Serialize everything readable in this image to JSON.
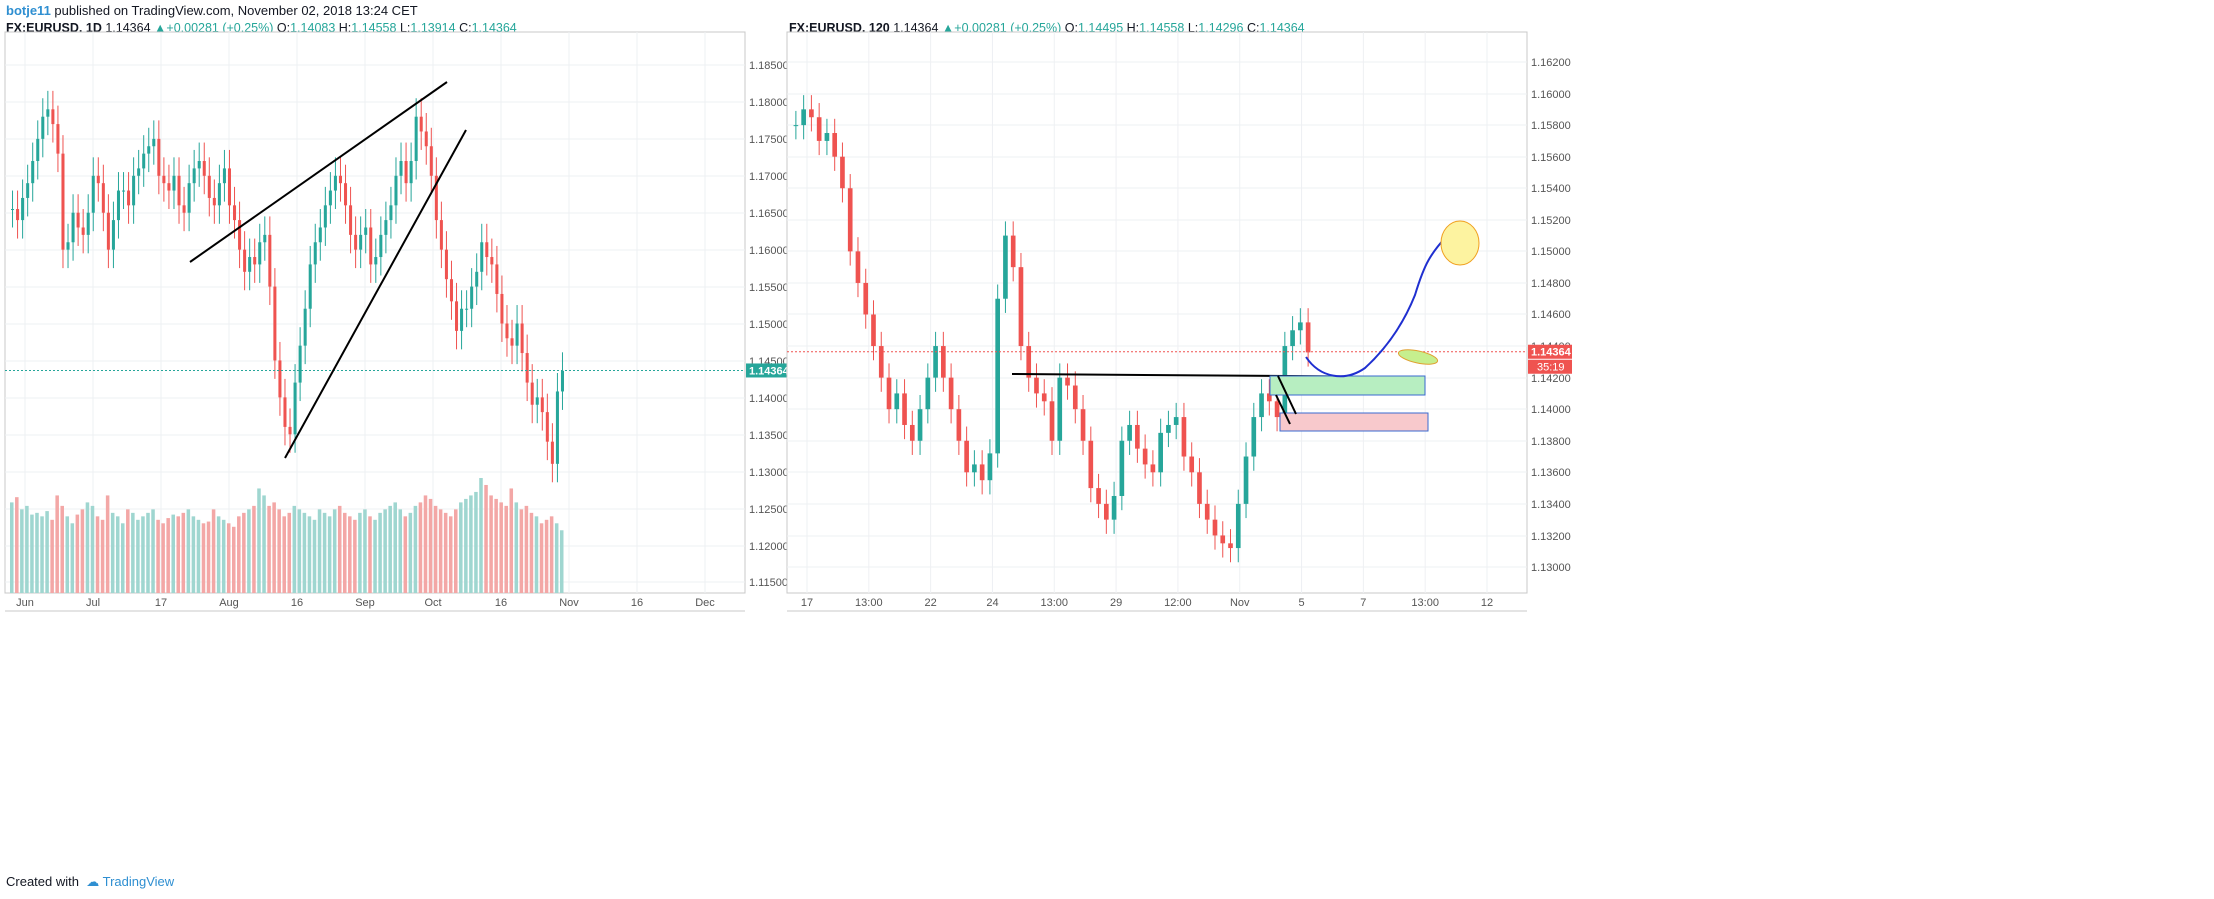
{
  "header": {
    "publisher": "botje11",
    "published_text": "published on TradingView.com, November 02, 2018 13:24 CET"
  },
  "footer": {
    "created_with": "Created with",
    "brand": "TradingView"
  },
  "colors": {
    "up": "#26a69a",
    "down": "#ef5350",
    "grid": "#eef0f3",
    "axis_text": "#555555",
    "price_label": "#ef5350"
  },
  "chart_data": [
    {
      "type": "candlestick",
      "symbol": "FX:EURUSD",
      "interval": "1D",
      "last": "1.14364",
      "change": "+0.00281 (+0.25%)",
      "open": "1.14083",
      "high": "1.14558",
      "low": "1.13914",
      "close": "1.14364",
      "labels": {
        "o": "O:",
        "h": "H:",
        "l": "L:",
        "c": "C:"
      },
      "ylim": [
        1.1135,
        1.1885
      ],
      "y_ticks": [
        "1.18500",
        "1.18000",
        "1.17500",
        "1.17000",
        "1.16500",
        "1.16000",
        "1.15500",
        "1.15000",
        "1.14500",
        "1.14000",
        "1.13500",
        "1.13000",
        "1.12500",
        "1.12000",
        "1.11500"
      ],
      "x_ticks": [
        "Jun",
        "Jul",
        "17",
        "Aug",
        "16",
        "Sep",
        "Oct",
        "16",
        "Nov",
        "16",
        "Dec"
      ],
      "price_tag": "1.14364",
      "close_series": [
        1.1655,
        1.164,
        1.167,
        1.169,
        1.172,
        1.175,
        1.178,
        1.179,
        1.177,
        1.173,
        1.16,
        1.161,
        1.165,
        1.163,
        1.162,
        1.165,
        1.17,
        1.169,
        1.165,
        1.16,
        1.164,
        1.168,
        1.168,
        1.166,
        1.17,
        1.171,
        1.173,
        1.174,
        1.175,
        1.17,
        1.169,
        1.168,
        1.17,
        1.166,
        1.165,
        1.169,
        1.171,
        1.172,
        1.17,
        1.167,
        1.166,
        1.169,
        1.171,
        1.166,
        1.164,
        1.16,
        1.157,
        1.159,
        1.158,
        1.161,
        1.162,
        1.155,
        1.145,
        1.14,
        1.136,
        1.135,
        1.142,
        1.147,
        1.152,
        1.158,
        1.161,
        1.163,
        1.166,
        1.168,
        1.17,
        1.169,
        1.166,
        1.162,
        1.16,
        1.162,
        1.163,
        1.158,
        1.159,
        1.162,
        1.164,
        1.166,
        1.17,
        1.172,
        1.169,
        1.172,
        1.178,
        1.176,
        1.174,
        1.17,
        1.164,
        1.16,
        1.156,
        1.153,
        1.149,
        1.152,
        1.152,
        1.155,
        1.157,
        1.161,
        1.159,
        1.158,
        1.154,
        1.15,
        1.148,
        1.147,
        1.15,
        1.146,
        1.142,
        1.139,
        1.14,
        1.138,
        1.134,
        1.131,
        1.1408,
        1.1436
      ],
      "volume_series": [
        52,
        55,
        48,
        50,
        45,
        46,
        44,
        47,
        42,
        56,
        50,
        44,
        40,
        45,
        48,
        52,
        50,
        44,
        42,
        56,
        46,
        44,
        40,
        48,
        46,
        42,
        44,
        46,
        48,
        42,
        40,
        43,
        45,
        44,
        46,
        48,
        44,
        42,
        40,
        41,
        48,
        44,
        42,
        40,
        38,
        44,
        46,
        48,
        50,
        60,
        56,
        50,
        52,
        48,
        44,
        46,
        50,
        48,
        46,
        44,
        42,
        48,
        46,
        44,
        48,
        50,
        46,
        44,
        42,
        46,
        48,
        44,
        42,
        46,
        48,
        50,
        52,
        48,
        44,
        46,
        50,
        52,
        56,
        54,
        50,
        48,
        46,
        44,
        48,
        52,
        54,
        56,
        58,
        66,
        62,
        56,
        54,
        52,
        50,
        60,
        52,
        48,
        50,
        46,
        44,
        40,
        42,
        44,
        40,
        36
      ]
    },
    {
      "type": "candlestick",
      "symbol": "FX:EURUSD",
      "interval": "120",
      "last": "1.14364",
      "change": "+0.00281 (+0.25%)",
      "open": "1.14495",
      "high": "1.14558",
      "low": "1.14296",
      "close": "1.14364",
      "labels": {
        "o": "O:",
        "h": "H:",
        "l": "L:",
        "c": "C:"
      },
      "ylim": [
        1.1288,
        1.1632
      ],
      "y_ticks": [
        "1.16200",
        "1.16000",
        "1.15800",
        "1.15600",
        "1.15400",
        "1.15200",
        "1.15000",
        "1.14800",
        "1.14600",
        "1.14400",
        "1.14200",
        "1.14000",
        "1.13800",
        "1.13600",
        "1.13400",
        "1.13200",
        "1.13000"
      ],
      "x_ticks": [
        "17",
        "13:00",
        "22",
        "24",
        "13:00",
        "29",
        "12:00",
        "Nov",
        "5",
        "7",
        "13:00",
        "12"
      ],
      "price_tag": "1.14364",
      "countdown": "35:19",
      "close_series": [
        1.158,
        1.159,
        1.1585,
        1.157,
        1.1575,
        1.156,
        1.154,
        1.15,
        1.148,
        1.146,
        1.144,
        1.142,
        1.14,
        1.141,
        1.139,
        1.138,
        1.14,
        1.142,
        1.144,
        1.142,
        1.14,
        1.138,
        1.136,
        1.1365,
        1.1355,
        1.1372,
        1.147,
        1.151,
        1.149,
        1.144,
        1.142,
        1.141,
        1.1405,
        1.138,
        1.142,
        1.1415,
        1.14,
        1.138,
        1.135,
        1.134,
        1.133,
        1.1345,
        1.138,
        1.139,
        1.1375,
        1.1365,
        1.136,
        1.1385,
        1.139,
        1.1395,
        1.137,
        1.136,
        1.134,
        1.133,
        1.132,
        1.1315,
        1.1312,
        1.134,
        1.137,
        1.1395,
        1.141,
        1.1405,
        1.1395,
        1.144,
        1.145,
        1.1455,
        1.1436
      ],
      "volume_series": []
    }
  ]
}
